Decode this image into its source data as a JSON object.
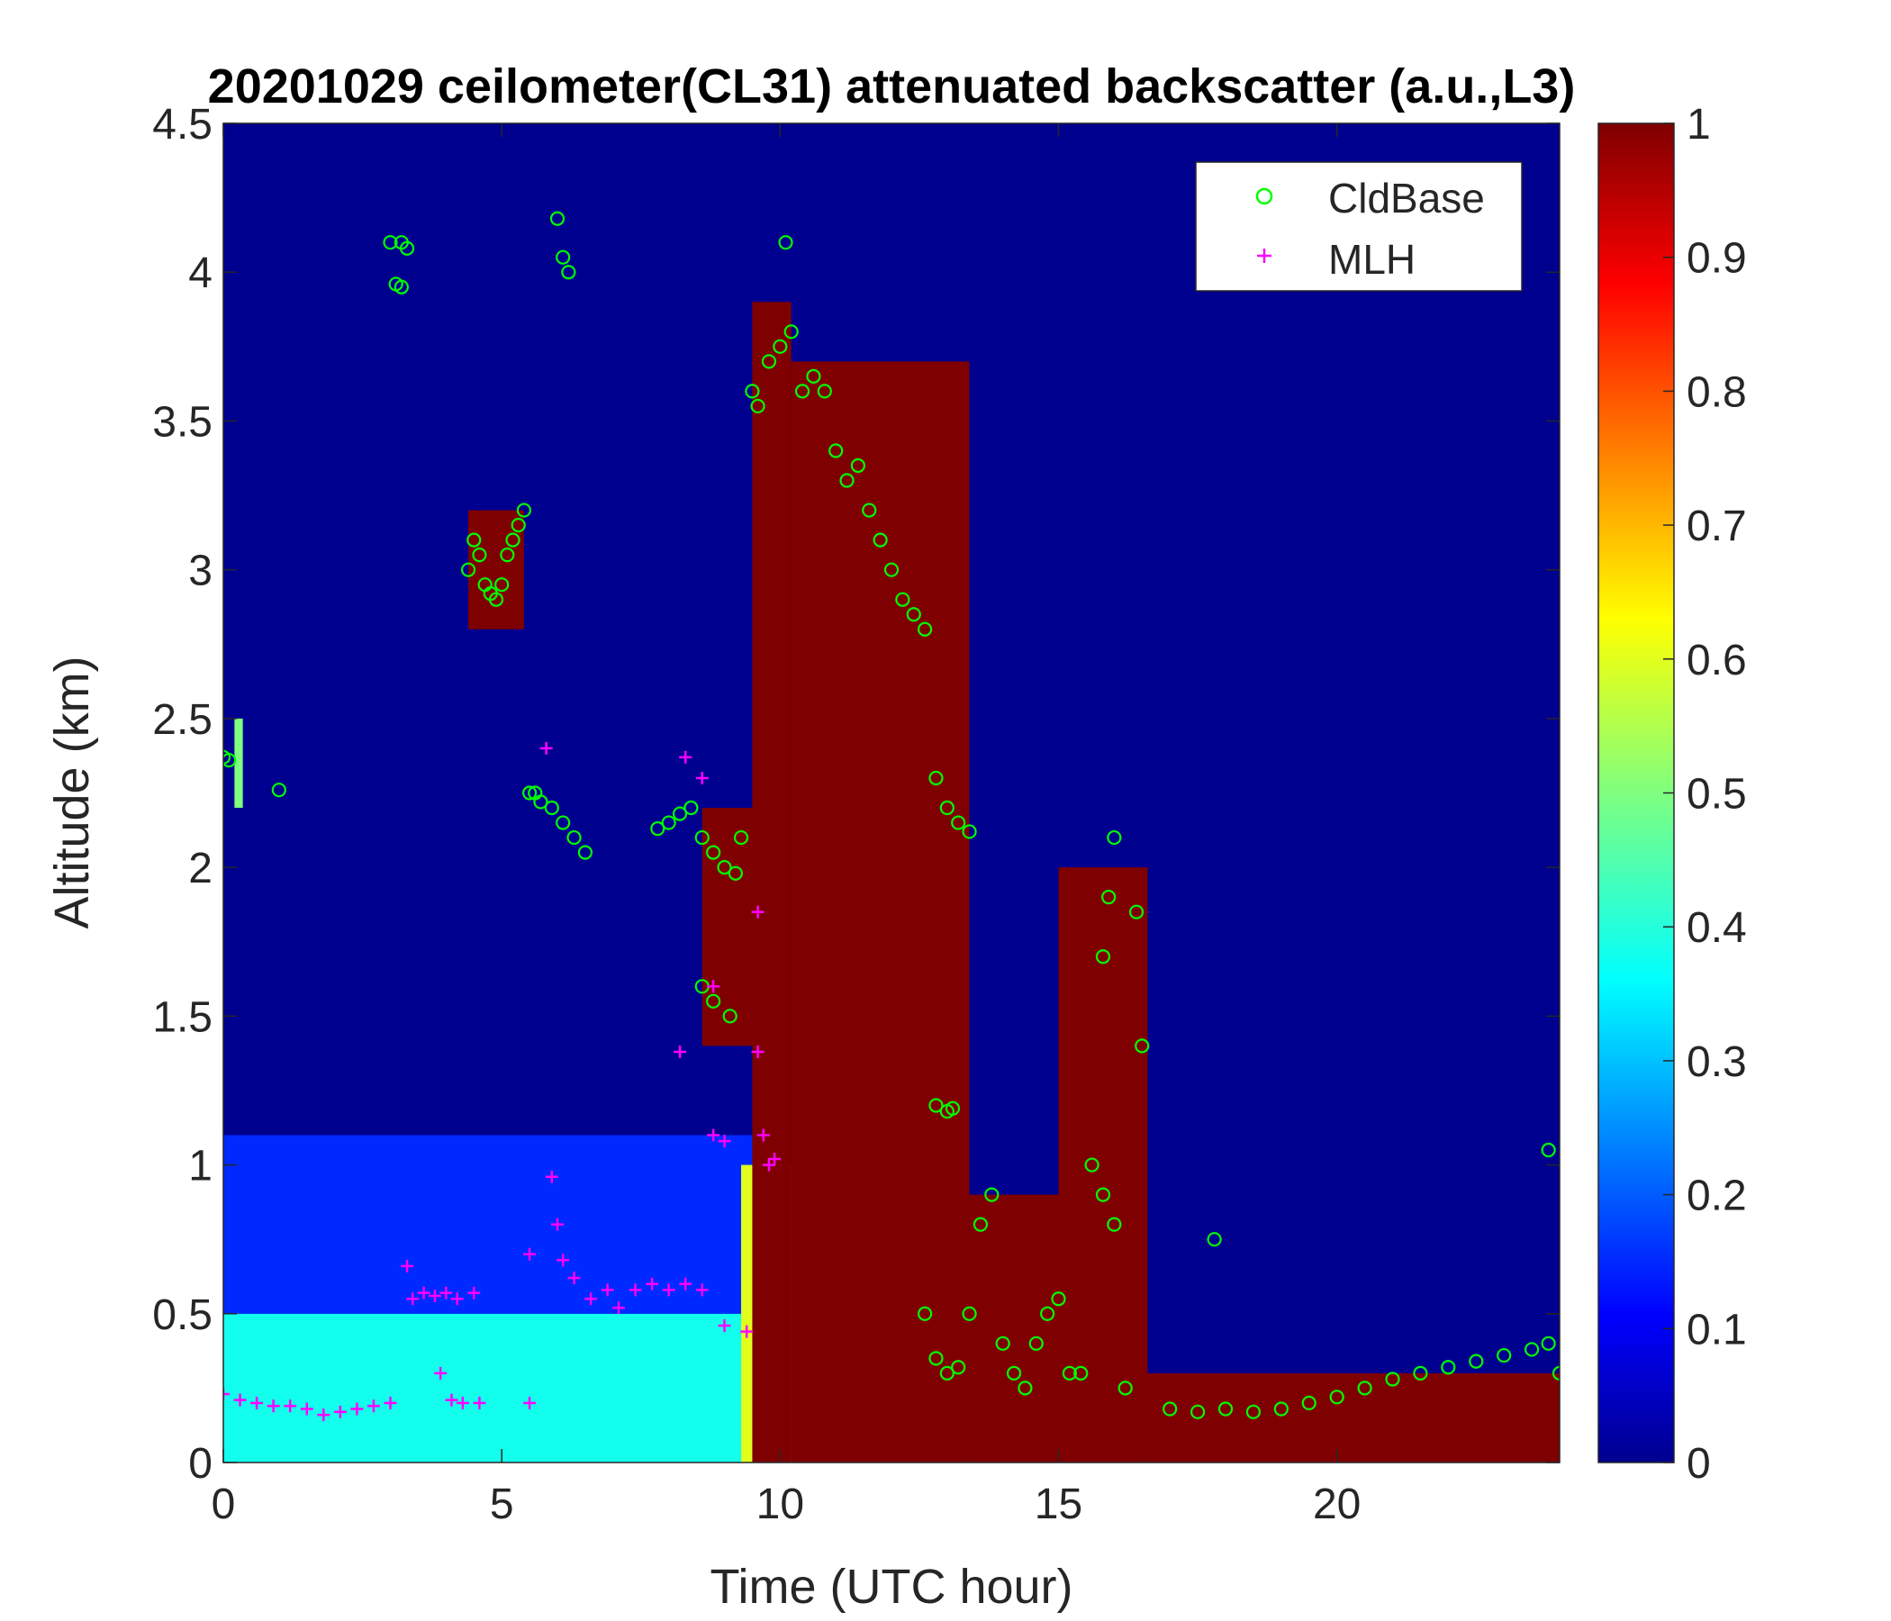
{
  "chart_data": {
    "type": "heatmap",
    "title": "20201029 ceilometer(CL31) attenuated backscatter (a.u.,L3)",
    "xlabel": "Time (UTC hour)",
    "ylabel": "Altitude (km)",
    "xlim": [
      0,
      24
    ],
    "ylim": [
      0,
      4.5
    ],
    "x_ticks": [
      "0",
      "5",
      "10",
      "15",
      "20"
    ],
    "x_tick_values": [
      0,
      5,
      10,
      15,
      20
    ],
    "y_ticks": [
      "0",
      "0.5",
      "1",
      "1.5",
      "2",
      "2.5",
      "3",
      "3.5",
      "4",
      "4.5"
    ],
    "y_tick_values": [
      0,
      0.5,
      1,
      1.5,
      2,
      2.5,
      3,
      3.5,
      4,
      4.5
    ],
    "colorbar": {
      "colormap": "jet",
      "range": [
        0,
        1
      ],
      "ticks": [
        "0",
        "0.1",
        "0.2",
        "0.3",
        "0.4",
        "0.5",
        "0.6",
        "0.7",
        "0.8",
        "0.9",
        "1"
      ],
      "tick_values": [
        0,
        0.1,
        0.2,
        0.3,
        0.4,
        0.5,
        0.6,
        0.7,
        0.8,
        0.9,
        1
      ]
    },
    "background_color": "#00008f",
    "legend": {
      "position": "top-right",
      "entries": [
        {
          "label": "CldBase",
          "marker": "circle",
          "color": "#00ff00"
        },
        {
          "label": "MLH",
          "marker": "plus",
          "color": "#ff00ff"
        }
      ]
    },
    "heatmap_regions": [
      {
        "x": [
          0,
          9.5
        ],
        "y": [
          0,
          0.5
        ],
        "value": 0.38
      },
      {
        "x": [
          0,
          9.5
        ],
        "y": [
          0.5,
          1.1
        ],
        "value": 0.15
      },
      {
        "x": [
          9.3,
          10.2
        ],
        "y": [
          0,
          1.0
        ],
        "value": 0.6
      },
      {
        "x": [
          9.5,
          10.2
        ],
        "y": [
          0,
          3.9
        ],
        "value": 1.0
      },
      {
        "x": [
          10.2,
          13.4
        ],
        "y": [
          0,
          3.7
        ],
        "value": 1.0
      },
      {
        "x": [
          13.4,
          15.0
        ],
        "y": [
          0,
          0.9
        ],
        "value": 1.0
      },
      {
        "x": [
          15.0,
          16.6
        ],
        "y": [
          0,
          2.0
        ],
        "value": 1.0
      },
      {
        "x": [
          16.6,
          24.0
        ],
        "y": [
          0,
          0.3
        ],
        "value": 1.0
      },
      {
        "x": [
          4.4,
          5.4
        ],
        "y": [
          2.8,
          3.2
        ],
        "value": 1.0
      },
      {
        "x": [
          0.2,
          0.35
        ],
        "y": [
          2.2,
          2.5
        ],
        "value": 0.5
      },
      {
        "x": [
          8.6,
          9.6
        ],
        "y": [
          1.4,
          2.2
        ],
        "value": 1.0
      }
    ],
    "series": [
      {
        "name": "CldBase",
        "marker": "circle",
        "color": "#00ff00",
        "x": [
          0.0,
          0.1,
          1.0,
          3.0,
          3.1,
          3.2,
          3.3,
          3.2,
          4.4,
          4.5,
          4.6,
          4.7,
          4.8,
          4.9,
          5.0,
          5.1,
          5.2,
          5.3,
          5.4,
          5.5,
          6.0,
          6.1,
          6.2,
          5.6,
          5.7,
          5.9,
          6.1,
          6.3,
          6.5,
          7.8,
          8.0,
          8.2,
          8.4,
          8.6,
          8.8,
          9.0,
          9.2,
          8.6,
          8.8,
          9.1,
          9.3,
          9.5,
          9.6,
          9.8,
          10.0,
          10.1,
          10.2,
          10.4,
          10.6,
          10.8,
          11.0,
          11.2,
          11.4,
          11.6,
          11.8,
          12.0,
          12.2,
          12.4,
          12.6,
          12.8,
          13.0,
          13.2,
          13.4,
          12.8,
          13.0,
          13.1,
          12.6,
          12.8,
          13.0,
          13.2,
          13.4,
          13.6,
          13.8,
          14.0,
          14.2,
          14.4,
          14.6,
          14.8,
          15.0,
          15.2,
          15.4,
          15.6,
          15.8,
          16.0,
          16.2,
          15.8,
          15.9,
          16.0,
          16.4,
          16.5,
          17.0,
          17.5,
          18.0,
          18.5,
          19.0,
          19.5,
          20.0,
          20.5,
          21.0,
          21.5,
          22.0,
          22.5,
          23.0,
          23.5,
          23.8,
          24.0,
          17.8,
          23.8
        ],
        "y": [
          2.37,
          2.36,
          2.26,
          4.1,
          3.96,
          4.1,
          4.08,
          3.95,
          3.0,
          3.1,
          3.05,
          2.95,
          2.92,
          2.9,
          2.95,
          3.05,
          3.1,
          3.15,
          3.2,
          2.25,
          4.18,
          4.05,
          4.0,
          2.25,
          2.22,
          2.2,
          2.15,
          2.1,
          2.05,
          2.13,
          2.15,
          2.18,
          2.2,
          2.1,
          2.05,
          2.0,
          1.98,
          1.6,
          1.55,
          1.5,
          2.1,
          3.6,
          3.55,
          3.7,
          3.75,
          4.1,
          3.8,
          3.6,
          3.65,
          3.6,
          3.4,
          3.3,
          3.35,
          3.2,
          3.1,
          3.0,
          2.9,
          2.85,
          2.8,
          2.3,
          2.2,
          2.15,
          2.12,
          1.2,
          1.18,
          1.19,
          0.5,
          0.35,
          0.3,
          0.32,
          0.5,
          0.8,
          0.9,
          0.4,
          0.3,
          0.25,
          0.4,
          0.5,
          0.55,
          0.3,
          0.3,
          1.0,
          0.9,
          0.8,
          0.25,
          1.7,
          1.9,
          2.1,
          1.85,
          1.4,
          0.18,
          0.17,
          0.18,
          0.17,
          0.18,
          0.2,
          0.22,
          0.25,
          0.28,
          0.3,
          0.32,
          0.34,
          0.36,
          0.38,
          0.4,
          0.3,
          0.75,
          1.05
        ]
      },
      {
        "name": "MLH",
        "marker": "plus",
        "color": "#ff00ff",
        "x": [
          0.0,
          0.3,
          0.6,
          0.9,
          1.2,
          1.5,
          1.8,
          2.1,
          2.4,
          2.7,
          3.0,
          3.3,
          3.4,
          3.6,
          3.8,
          4.0,
          4.2,
          4.5,
          3.9,
          4.1,
          4.3,
          4.6,
          5.5,
          5.9,
          6.0,
          5.5,
          6.1,
          6.3,
          6.6,
          6.9,
          7.1,
          7.4,
          7.7,
          8.0,
          8.3,
          8.6,
          9.0,
          9.4,
          9.7,
          9.8,
          9.9,
          8.3,
          8.6,
          8.8,
          8.8,
          9.0,
          8.2,
          5.8,
          9.6,
          9.6
        ],
        "y": [
          0.23,
          0.21,
          0.2,
          0.19,
          0.19,
          0.18,
          0.16,
          0.17,
          0.18,
          0.19,
          0.2,
          0.66,
          0.55,
          0.57,
          0.56,
          0.57,
          0.55,
          0.57,
          0.3,
          0.21,
          0.2,
          0.2,
          0.2,
          0.96,
          0.8,
          0.7,
          0.68,
          0.62,
          0.55,
          0.58,
          0.52,
          0.58,
          0.6,
          0.58,
          0.6,
          0.58,
          0.46,
          0.44,
          1.1,
          1.0,
          1.02,
          2.37,
          2.3,
          1.6,
          1.1,
          1.08,
          1.38,
          2.4,
          1.85,
          1.38
        ]
      }
    ]
  }
}
